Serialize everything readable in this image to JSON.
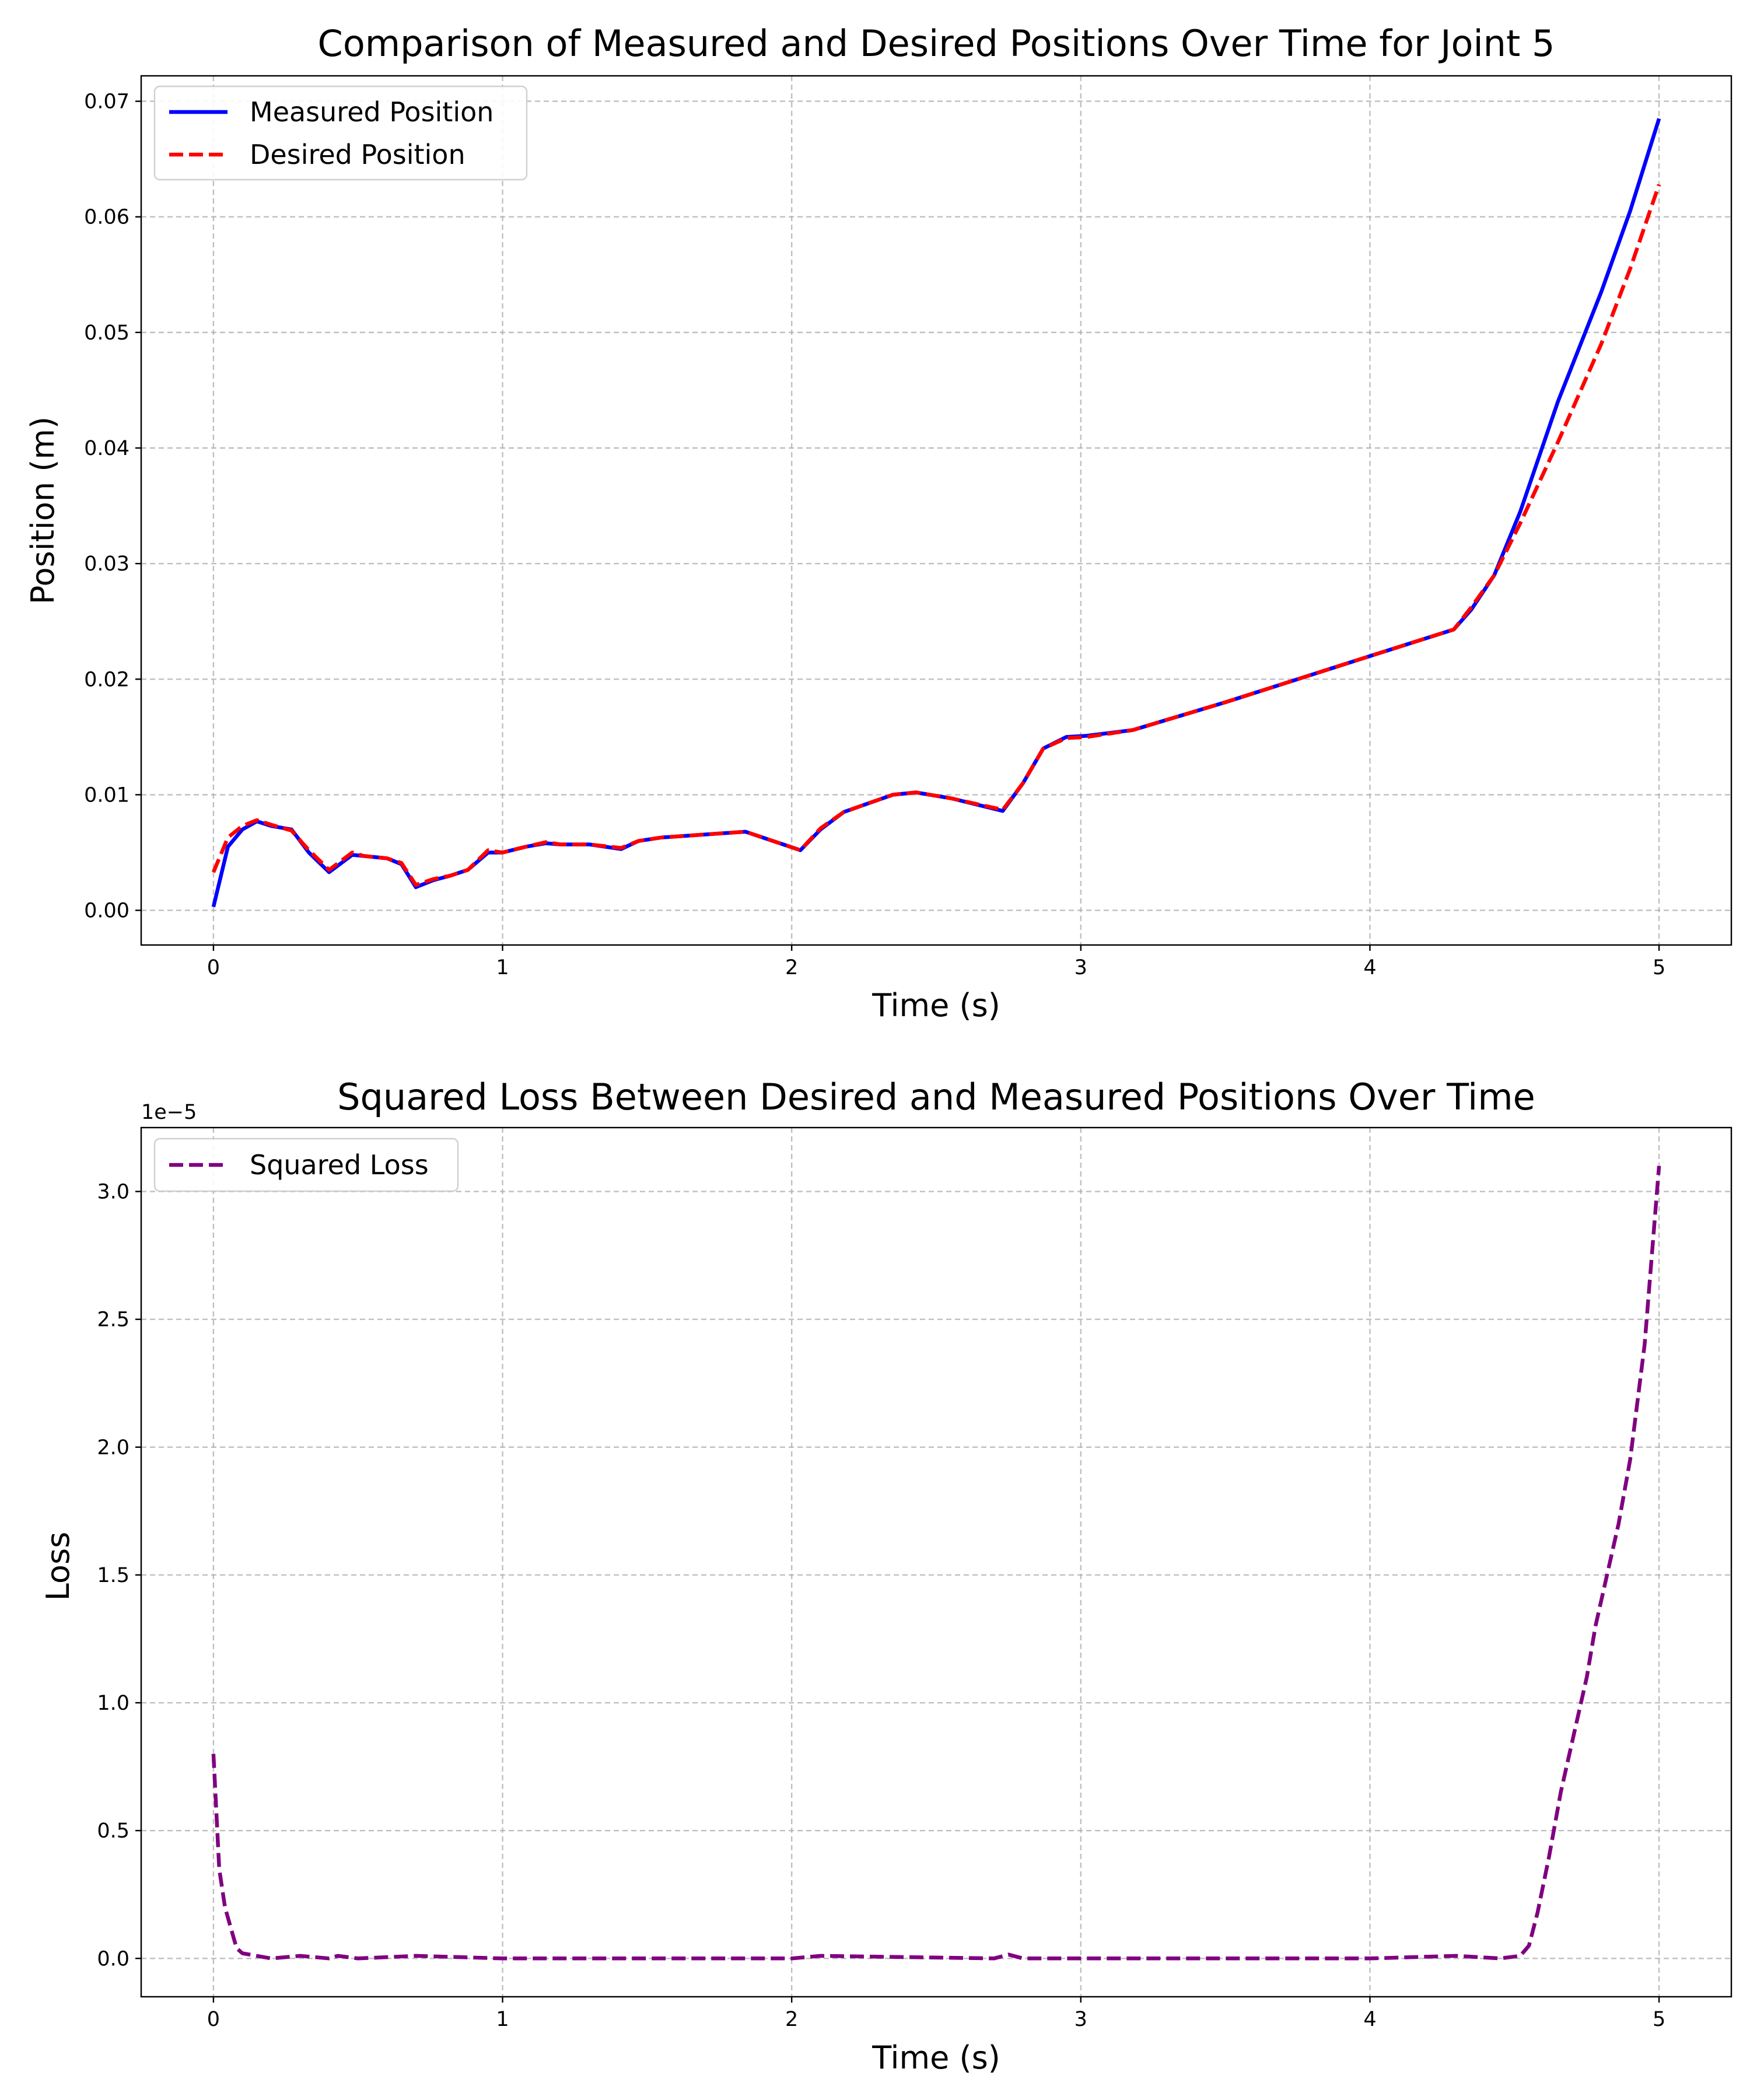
{
  "chart_data": [
    {
      "type": "line",
      "title": "Comparison of Measured and Desired Positions Over Time for Joint 5",
      "xlabel": "Time (s)",
      "ylabel": "Position (m)",
      "xlim": [
        -0.25,
        5.25
      ],
      "ylim": [
        -0.003,
        0.0722
      ],
      "grid": true,
      "legend_position": "top-left",
      "xticks": [
        0,
        1,
        2,
        3,
        4,
        5
      ],
      "xtick_labels": [
        "0",
        "1",
        "2",
        "3",
        "4",
        "5"
      ],
      "yticks": [
        0,
        0.01,
        0.02,
        0.03,
        0.04,
        0.05,
        0.06,
        0.07
      ],
      "ytick_labels": [
        "0.00",
        "0.01",
        "0.02",
        "0.03",
        "0.04",
        "0.05",
        "0.06",
        "0.07"
      ],
      "series": [
        {
          "name": "Measured Position",
          "color": "#0000ff",
          "style": "solid",
          "x": [
            0,
            0.05,
            0.1,
            0.15,
            0.2,
            0.27,
            0.33,
            0.4,
            0.48,
            0.52,
            0.6,
            0.65,
            0.7,
            0.76,
            0.82,
            0.88,
            0.95,
            1.0,
            1.08,
            1.15,
            1.2,
            1.3,
            1.41,
            1.47,
            1.55,
            1.84,
            2.03,
            2.1,
            2.18,
            2.27,
            2.35,
            2.43,
            2.55,
            2.73,
            2.8,
            2.87,
            2.95,
            3.02,
            3.18,
            3.5,
            4.0,
            4.29,
            4.35,
            4.43,
            4.52,
            4.65,
            4.8,
            4.9,
            5.0
          ],
          "y": [
            0.0003,
            0.0055,
            0.007,
            0.0077,
            0.0073,
            0.007,
            0.005,
            0.0033,
            0.0048,
            0.0047,
            0.0045,
            0.004,
            0.002,
            0.0026,
            0.003,
            0.0035,
            0.005,
            0.005,
            0.0055,
            0.0058,
            0.0057,
            0.0057,
            0.0053,
            0.006,
            0.0063,
            0.0068,
            0.0052,
            0.007,
            0.0085,
            0.0093,
            0.01,
            0.0102,
            0.0097,
            0.0086,
            0.011,
            0.014,
            0.015,
            0.0151,
            0.0156,
            0.018,
            0.022,
            0.0243,
            0.026,
            0.029,
            0.0345,
            0.044,
            0.0535,
            0.0605,
            0.0685
          ]
        },
        {
          "name": "Desired Position",
          "color": "#ff0000",
          "style": "dashed",
          "x": [
            0,
            0.05,
            0.1,
            0.15,
            0.2,
            0.27,
            0.33,
            0.4,
            0.48,
            0.52,
            0.6,
            0.65,
            0.7,
            0.76,
            0.82,
            0.88,
            0.95,
            1.0,
            1.08,
            1.15,
            1.2,
            1.3,
            1.41,
            1.47,
            1.55,
            1.84,
            2.03,
            2.1,
            2.18,
            2.27,
            2.35,
            2.43,
            2.55,
            2.73,
            2.8,
            2.87,
            2.95,
            3.02,
            3.18,
            3.5,
            4.0,
            4.29,
            4.35,
            4.43,
            4.52,
            4.65,
            4.8,
            4.9,
            5.0
          ],
          "y": [
            0.0033,
            0.0063,
            0.0073,
            0.0078,
            0.0074,
            0.0069,
            0.0052,
            0.0035,
            0.005,
            0.0047,
            0.0045,
            0.0041,
            0.0022,
            0.0027,
            0.003,
            0.0035,
            0.0052,
            0.005,
            0.0055,
            0.0059,
            0.0057,
            0.0057,
            0.0054,
            0.006,
            0.0063,
            0.0068,
            0.0052,
            0.0071,
            0.0085,
            0.0093,
            0.01,
            0.0102,
            0.0097,
            0.0087,
            0.011,
            0.014,
            0.0149,
            0.015,
            0.0156,
            0.018,
            0.022,
            0.0243,
            0.0262,
            0.029,
            0.0335,
            0.0405,
            0.049,
            0.0555,
            0.0628
          ]
        }
      ]
    },
    {
      "type": "line",
      "title": "Squared Loss Between Desired and Measured Positions Over Time",
      "xlabel": "Time (s)",
      "ylabel": "Loss",
      "y_offset_label": "1e−5",
      "xlim": [
        -0.25,
        5.25
      ],
      "ylim": [
        -1.5e-06,
        3.25e-05
      ],
      "grid": true,
      "legend_position": "top-left",
      "xticks": [
        0,
        1,
        2,
        3,
        4,
        5
      ],
      "xtick_labels": [
        "0",
        "1",
        "2",
        "3",
        "4",
        "5"
      ],
      "yticks": [
        0,
        5e-06,
        1e-05,
        1.5e-05,
        2e-05,
        2.5e-05,
        3e-05
      ],
      "ytick_labels": [
        "0.0",
        "0.5",
        "1.0",
        "1.5",
        "2.0",
        "2.5",
        "3.0"
      ],
      "series": [
        {
          "name": "Squared Loss",
          "color": "#800080",
          "style": "dashed",
          "x": [
            0,
            0.02,
            0.04,
            0.06,
            0.08,
            0.1,
            0.15,
            0.2,
            0.3,
            0.4,
            0.43,
            0.5,
            0.7,
            1.0,
            2.0,
            2.1,
            2.7,
            2.75,
            2.8,
            3.0,
            4.0,
            4.3,
            4.45,
            4.52,
            4.55,
            4.58,
            4.62,
            4.66,
            4.7,
            4.75,
            4.78,
            4.82,
            4.86,
            4.9,
            4.95,
            5.0
          ],
          "y": [
            8e-06,
            3.5e-06,
            2e-06,
            1.2e-06,
            4e-07,
            2e-07,
            1e-07,
            0,
            1e-07,
            0,
            1e-07,
            0,
            1e-07,
            0,
            0,
            1e-07,
            0,
            1.5e-07,
            0,
            0,
            0,
            1e-07,
            0,
            1e-07,
            5e-07,
            1.8e-06,
            4e-06,
            6.5e-06,
            8.5e-06,
            1.1e-05,
            1.3e-05,
            1.5e-05,
            1.7e-05,
            1.95e-05,
            2.4e-05,
            3.1e-05
          ]
        }
      ]
    }
  ]
}
